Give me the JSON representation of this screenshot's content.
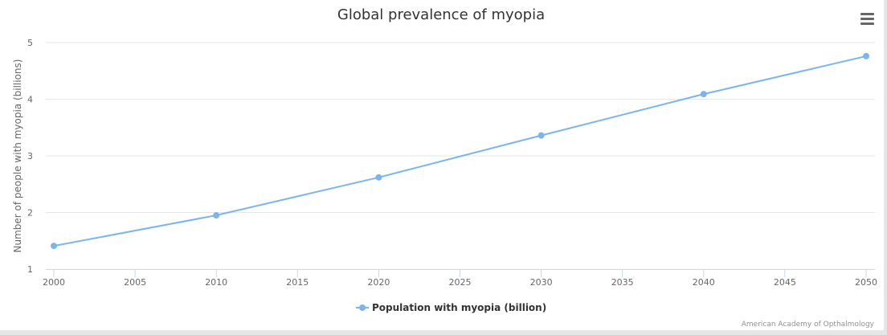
{
  "chart_data": {
    "type": "line",
    "title": "Global prevalence of myopia",
    "xlabel": "",
    "ylabel": "Number of people with myopia (billions)",
    "x": [
      2000,
      2010,
      2020,
      2030,
      2040,
      2050
    ],
    "series": [
      {
        "name": "Population with myopia (billion)",
        "values": [
          1.41,
          1.95,
          2.62,
          3.36,
          4.09,
          4.76
        ],
        "color": "#7cb5ec"
      }
    ],
    "xlim": [
      2000,
      2050
    ],
    "ylim": [
      1,
      5
    ],
    "xticks": [
      "2000",
      "2005",
      "2010",
      "2015",
      "2020",
      "2025",
      "2030",
      "2035",
      "2040",
      "2045",
      "2050"
    ],
    "yticks": [
      "1",
      "2",
      "3",
      "4",
      "5"
    ],
    "grid": true,
    "legend": "bottom-center"
  },
  "credits": "American Academy of Opthalmology",
  "menu_icon": "hamburger-menu-icon"
}
